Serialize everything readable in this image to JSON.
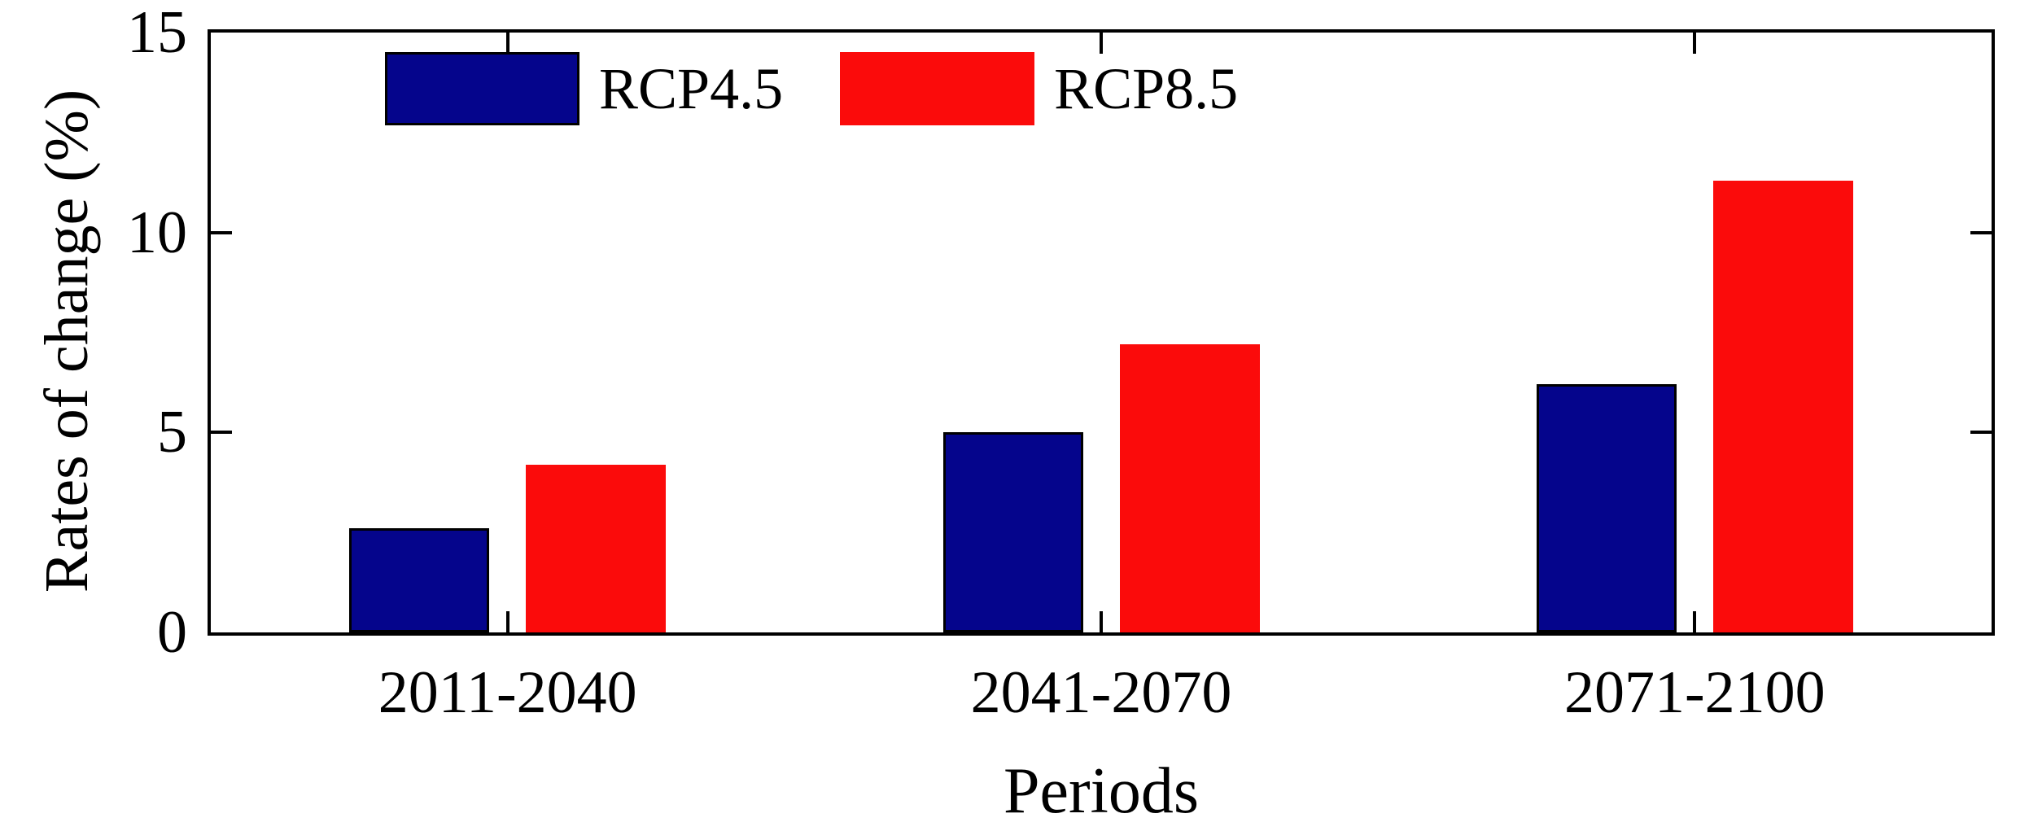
{
  "chart_data": {
    "type": "bar",
    "title": "",
    "xlabel": "Periods",
    "ylabel": "Rates of change (%)",
    "categories": [
      "2011-2040",
      "2041-2070",
      "2071-2100"
    ],
    "series": [
      {
        "name": "RCP4.5",
        "color": "#05058C",
        "edge_color": "#000000",
        "values": [
          2.6,
          5.0,
          6.2
        ]
      },
      {
        "name": "RCP8.5",
        "color": "#FB0B0B",
        "edge_color": "none",
        "values": [
          4.2,
          7.2,
          11.3
        ]
      }
    ],
    "ylim": [
      0,
      15
    ],
    "y_ticks": [
      0,
      5,
      10,
      15
    ],
    "grid": false,
    "legend_position": "top-left-inside",
    "tick_direction": "in",
    "axis_color": "#000000",
    "background": "#FFFFFF"
  }
}
